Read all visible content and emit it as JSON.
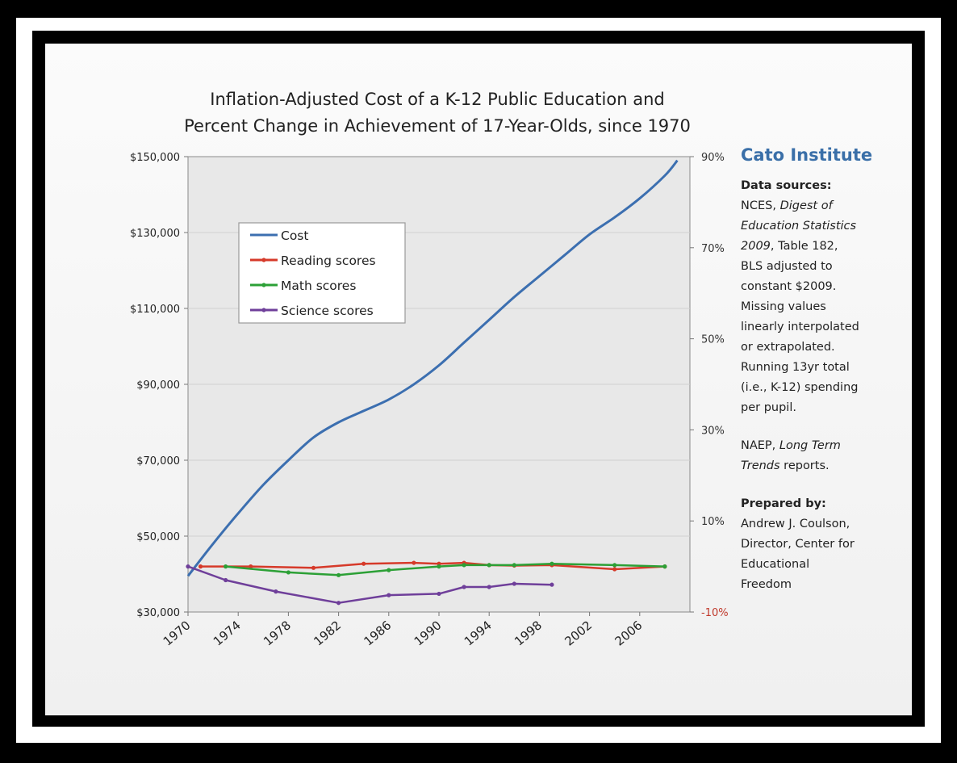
{
  "chart_data": {
    "type": "line",
    "title": [
      "Inflation-Adjusted Cost of a K-12 Public Education and",
      "Percent Change in Achievement of 17-Year-Olds, since 1970"
    ],
    "xlabel": "",
    "ylabel": "",
    "x_ticks": [
      "1970",
      "1974",
      "1978",
      "1982",
      "1986",
      "1990",
      "1994",
      "1998",
      "2002",
      "2006"
    ],
    "xlim": [
      1970,
      2010
    ],
    "y_left": {
      "ticks": [
        "$150,000",
        "$130,000",
        "$110,000",
        "$90,000",
        "$70,000",
        "$50,000",
        "$30,000"
      ],
      "ylim": [
        30000,
        150000
      ]
    },
    "y_right": {
      "ticks": [
        "90%",
        "70%",
        "50%",
        "30%",
        "10%",
        "-10%"
      ],
      "ylim": [
        -10,
        90
      ],
      "tick_colors": [
        "#333333",
        "#333333",
        "#333333",
        "#333333",
        "#333333",
        "#c0392b"
      ]
    },
    "grid": true,
    "legend_placement": "upper-left",
    "series": [
      {
        "name": "Cost",
        "axis": "left",
        "color": "#3c6fb0",
        "markers": false,
        "x": [
          1970,
          1972,
          1974,
          1976,
          1978,
          1980,
          1982,
          1984,
          1986,
          1988,
          1990,
          1992,
          1994,
          1996,
          1998,
          2000,
          2002,
          2004,
          2006,
          2008,
          2009
        ],
        "y": [
          39500,
          48000,
          56000,
          63500,
          70000,
          76000,
          80000,
          83000,
          86000,
          90000,
          95000,
          101000,
          107000,
          113000,
          118500,
          124000,
          129500,
          134000,
          139000,
          145000,
          149000
        ]
      },
      {
        "name": "Reading scores",
        "axis": "right",
        "color": "#d63a2a",
        "markers": true,
        "x": [
          1971,
          1975,
          1980,
          1984,
          1988,
          1990,
          1992,
          1994,
          1996,
          1999,
          2004,
          2008
        ],
        "y": [
          0.0,
          0.0,
          -0.3,
          0.6,
          0.8,
          0.6,
          0.8,
          0.3,
          0.2,
          0.3,
          -0.6,
          0.0
        ]
      },
      {
        "name": "Math scores",
        "axis": "right",
        "color": "#2ca036",
        "markers": true,
        "x": [
          1973,
          1978,
          1982,
          1986,
          1990,
          1992,
          1994,
          1996,
          1999,
          2004,
          2008
        ],
        "y": [
          0.0,
          -1.3,
          -1.9,
          -0.8,
          0.0,
          0.3,
          0.3,
          0.3,
          0.6,
          0.3,
          0.0
        ]
      },
      {
        "name": "Science scores",
        "axis": "right",
        "color": "#6f3f9a",
        "markers": true,
        "x": [
          1970,
          1973,
          1977,
          1982,
          1986,
          1990,
          1992,
          1994,
          1996,
          1999
        ],
        "y": [
          0.0,
          -3.0,
          -5.5,
          -8.0,
          -6.3,
          -6.0,
          -4.5,
          -4.5,
          -3.8,
          -4.0
        ]
      }
    ]
  },
  "sidebar": {
    "brand": "Cato Institute",
    "sources_heading": "Data sources:",
    "nces_prefix": "NCES, ",
    "nces_italic_1": "Digest of",
    "nces_italic_2": "Education Statistics",
    "nces_italic_3": "2009",
    "nces_rest_1": ", Table 182,",
    "nces_lines": [
      "BLS adjusted to",
      "constant $2009.",
      "Missing values",
      "linearly interpolated",
      "or extrapolated.",
      "Running 13yr total",
      "(i.e., K-12) spending",
      "per pupil."
    ],
    "naep_prefix": "NAEP, ",
    "naep_italic_1": "Long Term",
    "naep_italic_2": "Trends",
    "naep_rest": " reports.",
    "prepared_heading": "Prepared by:",
    "prepared_lines": [
      "Andrew J. Coulson,",
      "Director, Center for",
      "Educational",
      "Freedom"
    ]
  }
}
